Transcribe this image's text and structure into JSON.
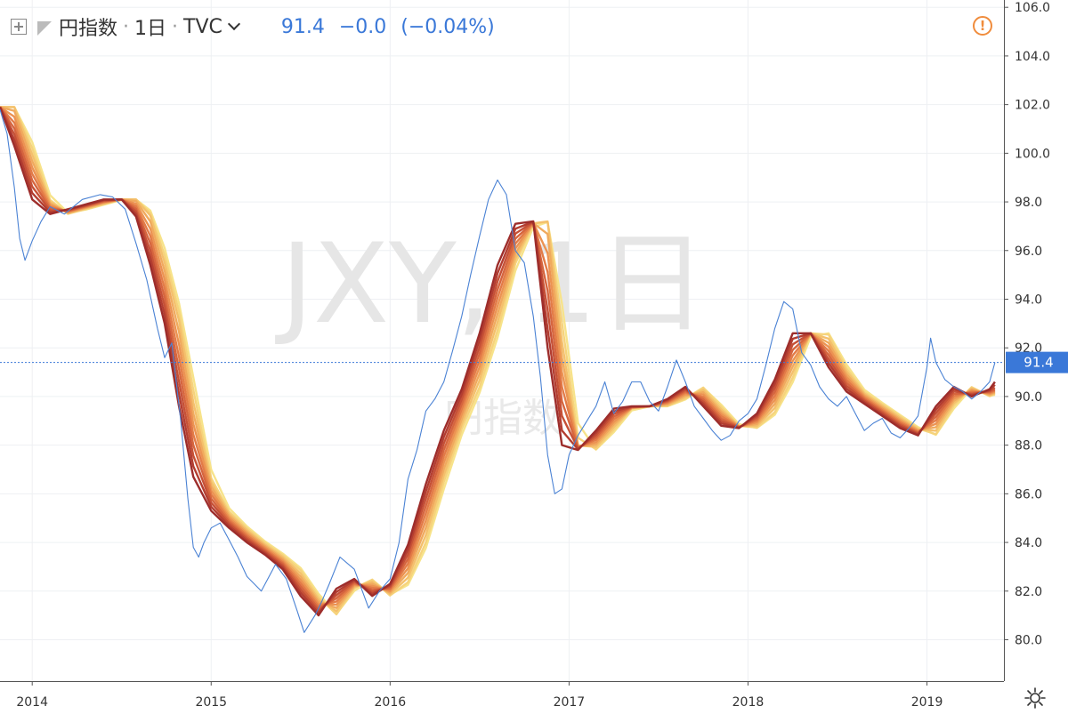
{
  "header": {
    "symbol_name": "円指数",
    "interval": "1日",
    "exchange": "TVC",
    "last_price": "91.4",
    "change": "−0.0",
    "change_pct": "(−0.04%)",
    "separator": "·"
  },
  "watermark": {
    "line1": "JXY, 1日",
    "line2": "円指数"
  },
  "price_label": "91.4",
  "icons": {
    "alert": "alert-icon",
    "settings": "gear-icon"
  },
  "colors": {
    "price_line": "#4a82d4",
    "price_label_bg": "#3a78d8",
    "ma_bands": [
      "#f7e38a",
      "#f6d37c",
      "#f4c06c",
      "#f0aa5e",
      "#ec9352",
      "#e37b47",
      "#d6653e",
      "#c65036",
      "#b33d30",
      "#9d2d2b"
    ]
  },
  "chart_data": {
    "type": "line",
    "title": "円指数",
    "y_ticks": [
      "106.0",
      "104.0",
      "102.0",
      "100.0",
      "98.0",
      "96.0",
      "94.0",
      "92.0",
      "90.0",
      "88.0",
      "86.0",
      "84.0",
      "82.0",
      "80.0"
    ],
    "ylim": [
      78.3,
      106.3
    ],
    "x_ticks": [
      "2014",
      "2015",
      "2016",
      "2017",
      "2018",
      "2019"
    ],
    "xlim": [
      2013.82,
      2019.43
    ],
    "series": [
      {
        "type": "price",
        "x": [
          2013.82,
          2013.86,
          2013.9,
          2013.93,
          2013.96,
          2014.0,
          2014.05,
          2014.1,
          2014.18,
          2014.28,
          2014.38,
          2014.45,
          2014.52,
          2014.58,
          2014.64,
          2014.7,
          2014.74,
          2014.78,
          2014.83,
          2014.87,
          2014.9,
          2014.93,
          2014.96,
          2015.0,
          2015.05,
          2015.1,
          2015.15,
          2015.2,
          2015.28,
          2015.36,
          2015.42,
          2015.48,
          2015.52,
          2015.58,
          2015.62,
          2015.66,
          2015.72,
          2015.8,
          2015.88,
          2015.94,
          2016.0,
          2016.05,
          2016.1,
          2016.15,
          2016.2,
          2016.25,
          2016.3,
          2016.35,
          2016.4,
          2016.45,
          2016.5,
          2016.55,
          2016.6,
          2016.65,
          2016.7,
          2016.75,
          2016.8,
          2016.84,
          2016.88,
          2016.92,
          2016.96,
          2017.0,
          2017.05,
          2017.1,
          2017.15,
          2017.2,
          2017.25,
          2017.3,
          2017.35,
          2017.4,
          2017.45,
          2017.5,
          2017.55,
          2017.6,
          2017.65,
          2017.7,
          2017.75,
          2017.8,
          2017.85,
          2017.9,
          2017.95,
          2018.0,
          2018.05,
          2018.1,
          2018.15,
          2018.2,
          2018.25,
          2018.3,
          2018.35,
          2018.4,
          2018.45,
          2018.5,
          2018.55,
          2018.6,
          2018.65,
          2018.7,
          2018.75,
          2018.8,
          2018.85,
          2018.9,
          2018.95,
          2019.0,
          2019.02,
          2019.05,
          2019.1,
          2019.15,
          2019.2,
          2019.25,
          2019.3,
          2019.35,
          2019.38
        ],
        "y": [
          101.8,
          100.8,
          98.6,
          96.5,
          95.6,
          96.4,
          97.2,
          97.8,
          97.5,
          98.1,
          98.3,
          98.2,
          97.7,
          96.3,
          94.8,
          92.8,
          91.6,
          92.2,
          89.0,
          85.8,
          83.8,
          83.4,
          84.0,
          84.6,
          84.8,
          84.1,
          83.4,
          82.6,
          82.0,
          83.1,
          82.5,
          81.2,
          80.3,
          81.0,
          81.6,
          82.3,
          83.4,
          82.9,
          81.3,
          82.0,
          82.5,
          84.0,
          86.6,
          87.8,
          89.4,
          89.9,
          90.6,
          91.9,
          93.3,
          95.0,
          96.6,
          98.1,
          98.9,
          98.3,
          96.0,
          95.5,
          93.3,
          90.8,
          87.6,
          86.0,
          86.2,
          87.6,
          88.4,
          89.0,
          89.6,
          90.6,
          89.3,
          89.8,
          90.6,
          90.6,
          89.8,
          89.4,
          90.4,
          91.5,
          90.6,
          89.6,
          89.1,
          88.6,
          88.2,
          88.4,
          89.0,
          89.3,
          89.9,
          91.3,
          92.8,
          93.9,
          93.6,
          91.8,
          91.3,
          90.4,
          89.9,
          89.6,
          90.0,
          89.3,
          88.6,
          88.9,
          89.1,
          88.5,
          88.3,
          88.7,
          89.2,
          91.2,
          92.4,
          91.4,
          90.7,
          90.4,
          90.2,
          89.9,
          90.2,
          90.6,
          91.4
        ]
      },
      {
        "type": "moving_average_ribbon",
        "x": [
          2013.82,
          2013.9,
          2014.0,
          2014.1,
          2014.2,
          2014.3,
          2014.4,
          2014.5,
          2014.58,
          2014.66,
          2014.74,
          2014.82,
          2014.9,
          2015.0,
          2015.1,
          2015.2,
          2015.3,
          2015.4,
          2015.5,
          2015.6,
          2015.7,
          2015.8,
          2015.9,
          2016.0,
          2016.1,
          2016.2,
          2016.3,
          2016.4,
          2016.5,
          2016.6,
          2016.7,
          2016.8,
          2016.88,
          2016.96,
          2017.05,
          2017.15,
          2017.25,
          2017.35,
          2017.45,
          2017.55,
          2017.65,
          2017.75,
          2017.85,
          2017.95,
          2018.05,
          2018.15,
          2018.25,
          2018.35,
          2018.45,
          2018.55,
          2018.65,
          2018.75,
          2018.85,
          2018.95,
          2019.05,
          2019.15,
          2019.25,
          2019.35,
          2019.38
        ],
        "y": [
          101.9,
          100.3,
          98.1,
          97.5,
          97.7,
          97.9,
          98.1,
          98.1,
          97.4,
          95.4,
          93.0,
          89.6,
          86.7,
          85.3,
          84.6,
          84.0,
          83.5,
          82.9,
          81.8,
          81.0,
          82.1,
          82.5,
          81.8,
          82.3,
          83.9,
          86.4,
          88.6,
          90.3,
          92.6,
          95.4,
          97.1,
          97.2,
          92.0,
          88.0,
          87.8,
          88.6,
          89.5,
          89.6,
          89.6,
          89.9,
          90.4,
          89.6,
          88.8,
          88.7,
          89.3,
          90.7,
          92.6,
          92.6,
          91.2,
          90.2,
          89.7,
          89.2,
          88.7,
          88.4,
          89.6,
          90.4,
          90.0,
          90.3,
          90.6
        ]
      }
    ]
  }
}
